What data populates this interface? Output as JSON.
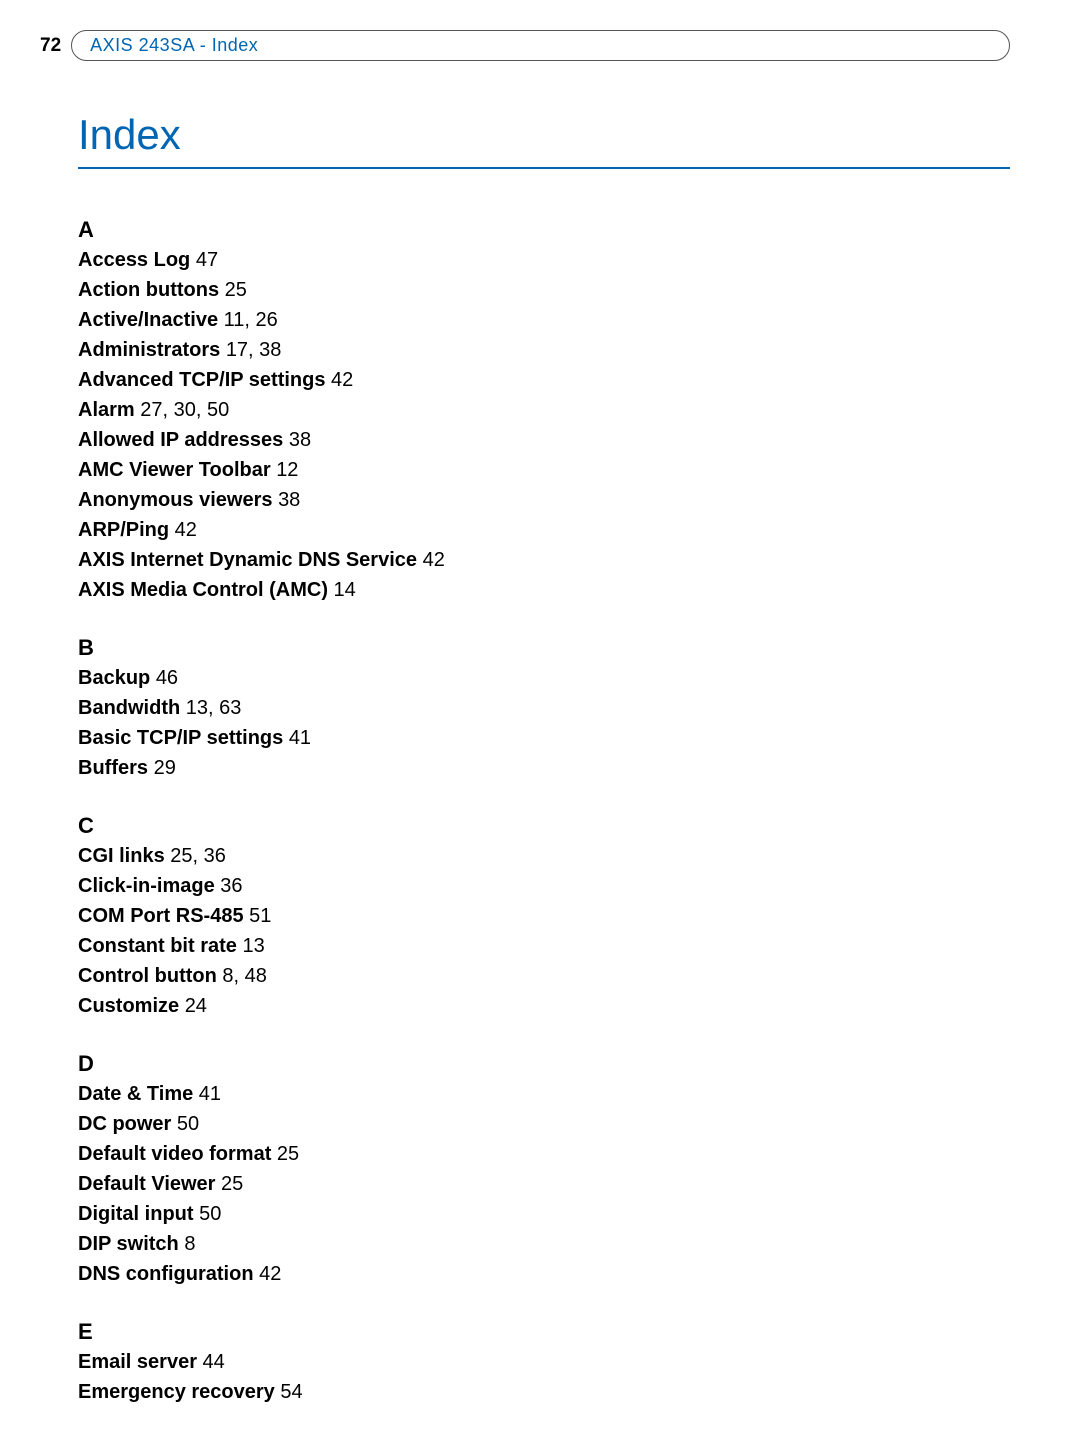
{
  "header": {
    "page_number": "72",
    "breadcrumb": "AXIS 243SA - Index"
  },
  "title": "Index",
  "sections": [
    {
      "letter": "A",
      "entries": [
        {
          "term": "Access Log",
          "pages": "47"
        },
        {
          "term": "Action buttons",
          "pages": "25"
        },
        {
          "term": "Active/Inactive",
          "pages": "11, 26"
        },
        {
          "term": "Administrators",
          "pages": "17, 38"
        },
        {
          "term": "Advanced TCP/IP settings",
          "pages": "42"
        },
        {
          "term": "Alarm",
          "pages": "27, 30, 50"
        },
        {
          "term": "Allowed IP addresses",
          "pages": "38"
        },
        {
          "term": "AMC Viewer Toolbar",
          "pages": "12"
        },
        {
          "term": "Anonymous viewers",
          "pages": "38"
        },
        {
          "term": "ARP/Ping",
          "pages": "42"
        },
        {
          "term": "AXIS Internet Dynamic DNS Service",
          "pages": "42"
        },
        {
          "term": "AXIS Media Control (AMC)",
          "pages": "14"
        }
      ]
    },
    {
      "letter": "B",
      "entries": [
        {
          "term": "Backup",
          "pages": "46"
        },
        {
          "term": "Bandwidth",
          "pages": "13, 63"
        },
        {
          "term": "Basic TCP/IP settings",
          "pages": "41"
        },
        {
          "term": "Buffers",
          "pages": "29"
        }
      ]
    },
    {
      "letter": "C",
      "entries": [
        {
          "term": "CGI links",
          "pages": "25, 36"
        },
        {
          "term": "Click-in-image",
          "pages": "36"
        },
        {
          "term": "COM Port RS-485",
          "pages": "51"
        },
        {
          "term": "Constant bit rate",
          "pages": "13"
        },
        {
          "term": "Control button",
          "pages": "8, 48"
        },
        {
          "term": "Customize",
          "pages": "24"
        }
      ]
    },
    {
      "letter": "D",
      "entries": [
        {
          "term": "Date & Time",
          "pages": "41"
        },
        {
          "term": "DC power",
          "pages": "50"
        },
        {
          "term": "Default video format",
          "pages": "25"
        },
        {
          "term": "Default Viewer",
          "pages": "25"
        },
        {
          "term": "Digital input",
          "pages": "50"
        },
        {
          "term": "DIP switch",
          "pages": "8"
        },
        {
          "term": "DNS configuration",
          "pages": "42"
        }
      ]
    },
    {
      "letter": "E",
      "entries": [
        {
          "term": "Email server",
          "pages": "44"
        },
        {
          "term": "Emergency recovery",
          "pages": "54"
        }
      ]
    }
  ]
}
